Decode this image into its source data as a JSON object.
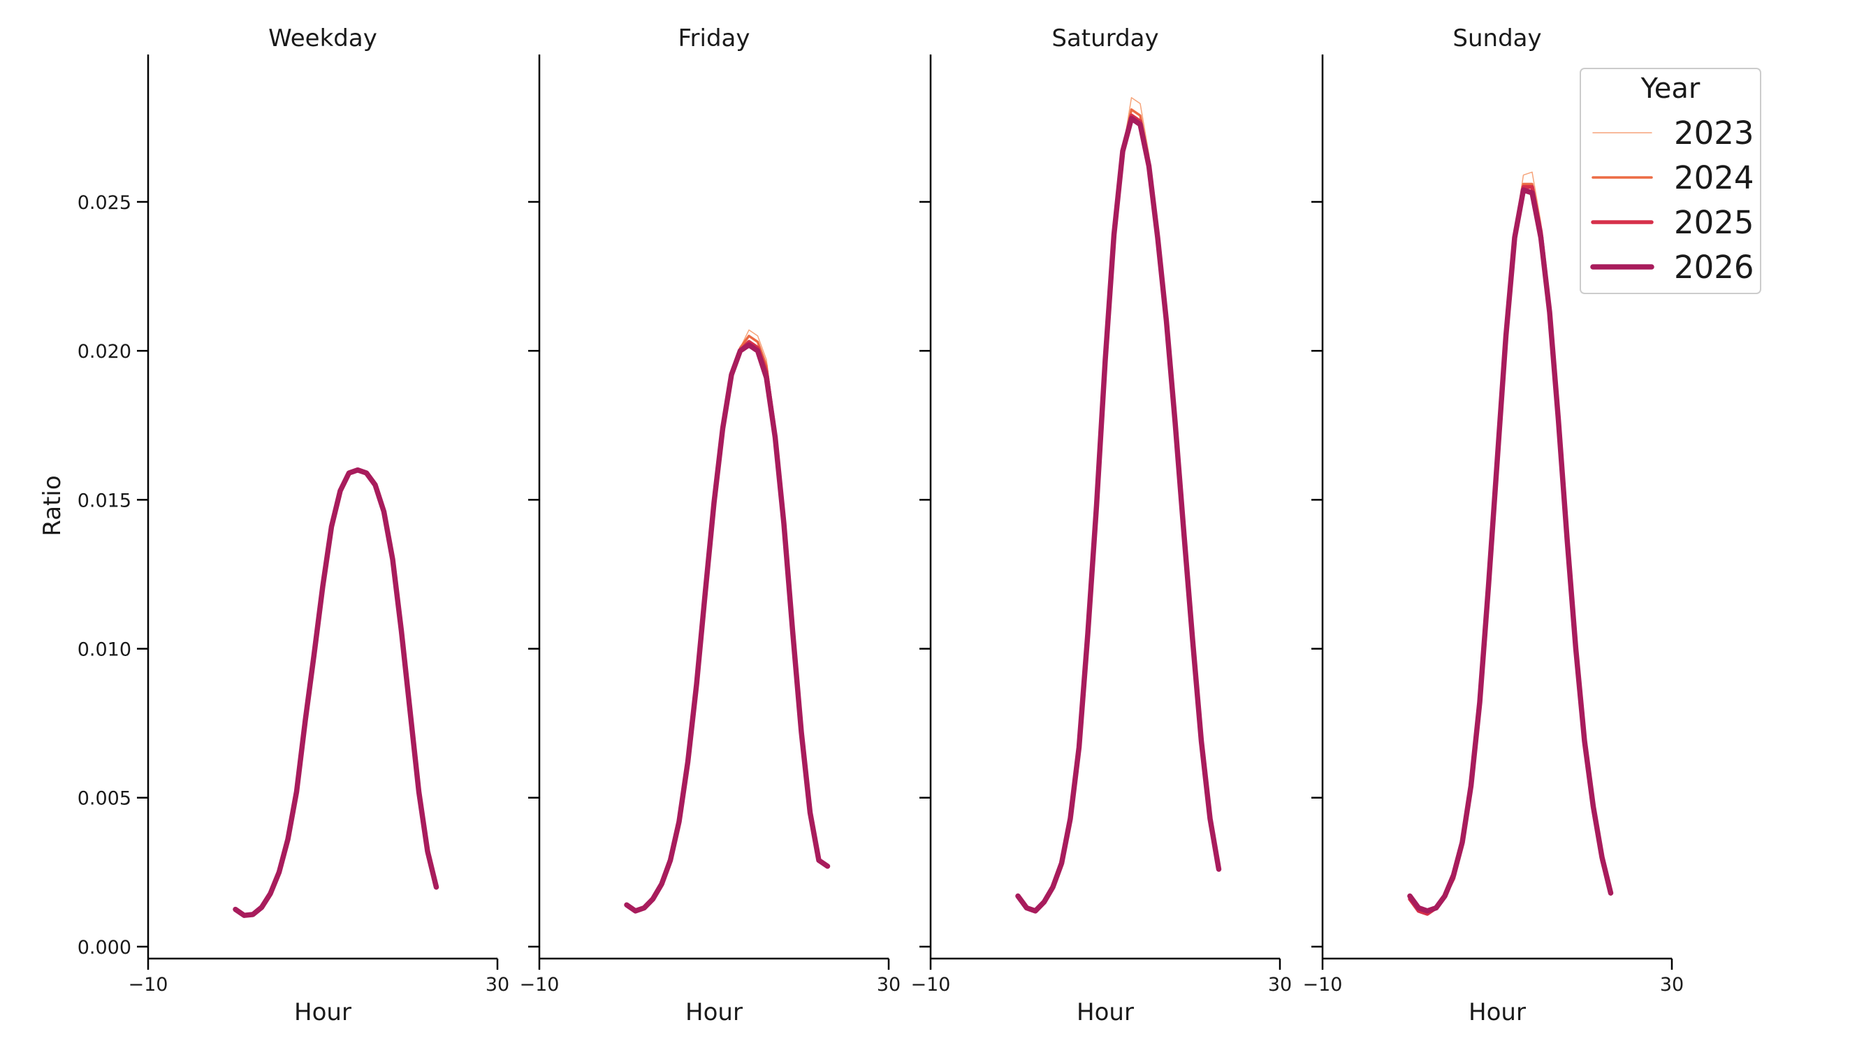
{
  "chart_data": {
    "type": "line",
    "ylabel": "Ratio",
    "xlabel": "Hour",
    "xlim": [
      -10,
      30
    ],
    "ylim": [
      -0.0004,
      0.0299
    ],
    "xticks": [
      -10,
      30
    ],
    "xtick_labels": [
      "−10",
      "30"
    ],
    "yticks": [
      0.0,
      0.005,
      0.01,
      0.015,
      0.02,
      0.025
    ],
    "ytick_labels": [
      "0.000",
      "0.005",
      "0.010",
      "0.015",
      "0.020",
      "0.025"
    ],
    "hours": [
      0,
      1,
      2,
      3,
      4,
      5,
      6,
      7,
      8,
      9,
      10,
      11,
      12,
      13,
      14,
      15,
      16,
      17,
      18,
      19,
      20,
      21,
      22,
      23
    ],
    "legend": {
      "title": "Year",
      "placement": "top-right",
      "entries": [
        {
          "name": "2023",
          "color": "#f6a47a",
          "width": 1.5
        },
        {
          "name": "2024",
          "color": "#ec6b44",
          "width": 3.5
        },
        {
          "name": "2025",
          "color": "#d6304a",
          "width": 5.5
        },
        {
          "name": "2026",
          "color": "#a81c5c",
          "width": 7.5
        }
      ]
    },
    "panels": [
      {
        "title": "Weekday",
        "series": [
          {
            "name": "2023",
            "values": [
              0.00125,
              0.00105,
              0.00108,
              0.00132,
              0.00178,
              0.0025,
              0.0036,
              0.0052,
              0.0076,
              0.0098,
              0.0121,
              0.0141,
              0.0153,
              0.0159,
              0.016,
              0.0159,
              0.0155,
              0.0146,
              0.013,
              0.0106,
              0.0079,
              0.0052,
              0.0032,
              0.002
            ]
          },
          {
            "name": "2024",
            "values": [
              0.00125,
              0.00105,
              0.00108,
              0.00132,
              0.00178,
              0.0025,
              0.0036,
              0.0052,
              0.0076,
              0.0098,
              0.0121,
              0.0141,
              0.0153,
              0.0159,
              0.016,
              0.0159,
              0.0155,
              0.0146,
              0.013,
              0.0106,
              0.0079,
              0.0052,
              0.0032,
              0.002
            ]
          },
          {
            "name": "2025",
            "values": [
              0.00125,
              0.00105,
              0.00108,
              0.00132,
              0.00178,
              0.0025,
              0.0036,
              0.0052,
              0.0076,
              0.0098,
              0.0121,
              0.0141,
              0.0153,
              0.0159,
              0.016,
              0.0159,
              0.0155,
              0.0146,
              0.013,
              0.0106,
              0.0079,
              0.0052,
              0.0032,
              0.002
            ]
          },
          {
            "name": "2026",
            "values": [
              0.00125,
              0.00105,
              0.00108,
              0.00132,
              0.00178,
              0.0025,
              0.0036,
              0.0052,
              0.0076,
              0.0098,
              0.0121,
              0.0141,
              0.0153,
              0.0159,
              0.016,
              0.0159,
              0.0155,
              0.0146,
              0.013,
              0.0106,
              0.0079,
              0.0052,
              0.0032,
              0.002
            ]
          }
        ]
      },
      {
        "title": "Friday",
        "series": [
          {
            "name": "2023",
            "values": [
              0.0014,
              0.0012,
              0.0013,
              0.0016,
              0.0021,
              0.0029,
              0.0042,
              0.0062,
              0.0088,
              0.0119,
              0.0149,
              0.0174,
              0.0192,
              0.0201,
              0.0207,
              0.0205,
              0.0197,
              0.0174,
              0.0144,
              0.0106,
              0.0072,
              0.0045,
              0.0029,
              0.0027
            ]
          },
          {
            "name": "2024",
            "values": [
              0.0014,
              0.0012,
              0.0013,
              0.0016,
              0.0021,
              0.0029,
              0.0042,
              0.0062,
              0.0088,
              0.0119,
              0.0149,
              0.0174,
              0.0192,
              0.0201,
              0.0205,
              0.0203,
              0.0195,
              0.0173,
              0.0143,
              0.0106,
              0.0072,
              0.0045,
              0.0029,
              0.0027
            ]
          },
          {
            "name": "2025",
            "values": [
              0.0014,
              0.0012,
              0.0013,
              0.0016,
              0.0021,
              0.0029,
              0.0042,
              0.0062,
              0.0088,
              0.0119,
              0.0149,
              0.0174,
              0.0192,
              0.02,
              0.0203,
              0.0201,
              0.0193,
              0.0172,
              0.0143,
              0.0106,
              0.0072,
              0.0045,
              0.0029,
              0.0027
            ]
          },
          {
            "name": "2026",
            "values": [
              0.0014,
              0.0012,
              0.0013,
              0.0016,
              0.0021,
              0.0029,
              0.0042,
              0.0062,
              0.0088,
              0.0119,
              0.0149,
              0.0174,
              0.0192,
              0.02,
              0.0202,
              0.02,
              0.0191,
              0.0171,
              0.0142,
              0.0106,
              0.0072,
              0.0045,
              0.0029,
              0.0027
            ]
          }
        ]
      },
      {
        "title": "Saturday",
        "series": [
          {
            "name": "2023",
            "values": [
              0.0017,
              0.0013,
              0.0012,
              0.0015,
              0.002,
              0.0028,
              0.0043,
              0.0067,
              0.0105,
              0.0148,
              0.0197,
              0.0239,
              0.0267,
              0.0285,
              0.0283,
              0.0266,
              0.0241,
              0.0212,
              0.0178,
              0.0139,
              0.0103,
              0.0069,
              0.0043,
              0.0026
            ]
          },
          {
            "name": "2024",
            "values": [
              0.0017,
              0.0013,
              0.0012,
              0.0015,
              0.002,
              0.0028,
              0.0043,
              0.0067,
              0.0105,
              0.0148,
              0.0197,
              0.0239,
              0.0267,
              0.0281,
              0.0279,
              0.0264,
              0.024,
              0.0211,
              0.0177,
              0.0139,
              0.0103,
              0.0069,
              0.0043,
              0.0026
            ]
          },
          {
            "name": "2025",
            "values": [
              0.0017,
              0.0013,
              0.0012,
              0.0015,
              0.002,
              0.0028,
              0.0043,
              0.0067,
              0.0105,
              0.0148,
              0.0197,
              0.0239,
              0.0267,
              0.0279,
              0.0277,
              0.0263,
              0.0239,
              0.0211,
              0.0177,
              0.0139,
              0.0103,
              0.0069,
              0.0043,
              0.0026
            ]
          },
          {
            "name": "2026",
            "values": [
              0.0017,
              0.0013,
              0.0012,
              0.0015,
              0.002,
              0.0028,
              0.0043,
              0.0067,
              0.0105,
              0.0148,
              0.0197,
              0.0239,
              0.0267,
              0.0278,
              0.0276,
              0.0262,
              0.0238,
              0.021,
              0.0176,
              0.0139,
              0.0103,
              0.0069,
              0.0043,
              0.0026
            ]
          }
        ]
      },
      {
        "title": "Sunday",
        "series": [
          {
            "name": "2023",
            "values": [
              0.0016,
              0.0012,
              0.0011,
              0.0013,
              0.0017,
              0.0023,
              0.0035,
              0.0054,
              0.0083,
              0.0122,
              0.0164,
              0.0207,
              0.024,
              0.0259,
              0.026,
              0.0243,
              0.0215,
              0.0178,
              0.0137,
              0.01,
              0.0069,
              0.0046,
              0.0029,
              0.0018
            ]
          },
          {
            "name": "2024",
            "values": [
              0.0016,
              0.0012,
              0.0011,
              0.0013,
              0.0017,
              0.0023,
              0.0035,
              0.0054,
              0.0083,
              0.0122,
              0.0164,
              0.0206,
              0.0239,
              0.0256,
              0.0256,
              0.0241,
              0.0214,
              0.0178,
              0.0137,
              0.01,
              0.0069,
              0.0046,
              0.0029,
              0.0018
            ]
          },
          {
            "name": "2025",
            "values": [
              0.0016,
              0.0012,
              0.0011,
              0.0013,
              0.0017,
              0.0023,
              0.0035,
              0.0054,
              0.0083,
              0.0122,
              0.0164,
              0.0206,
              0.0238,
              0.0255,
              0.0255,
              0.024,
              0.0214,
              0.0178,
              0.0137,
              0.01,
              0.0069,
              0.0046,
              0.0029,
              0.0018
            ]
          },
          {
            "name": "2026",
            "values": [
              0.0017,
              0.0013,
              0.0012,
              0.0013,
              0.0017,
              0.0024,
              0.0035,
              0.0054,
              0.0082,
              0.0121,
              0.0163,
              0.0205,
              0.0238,
              0.0254,
              0.0253,
              0.0238,
              0.0213,
              0.0177,
              0.0137,
              0.01,
              0.0069,
              0.0047,
              0.003,
              0.0018
            ]
          }
        ]
      }
    ]
  }
}
